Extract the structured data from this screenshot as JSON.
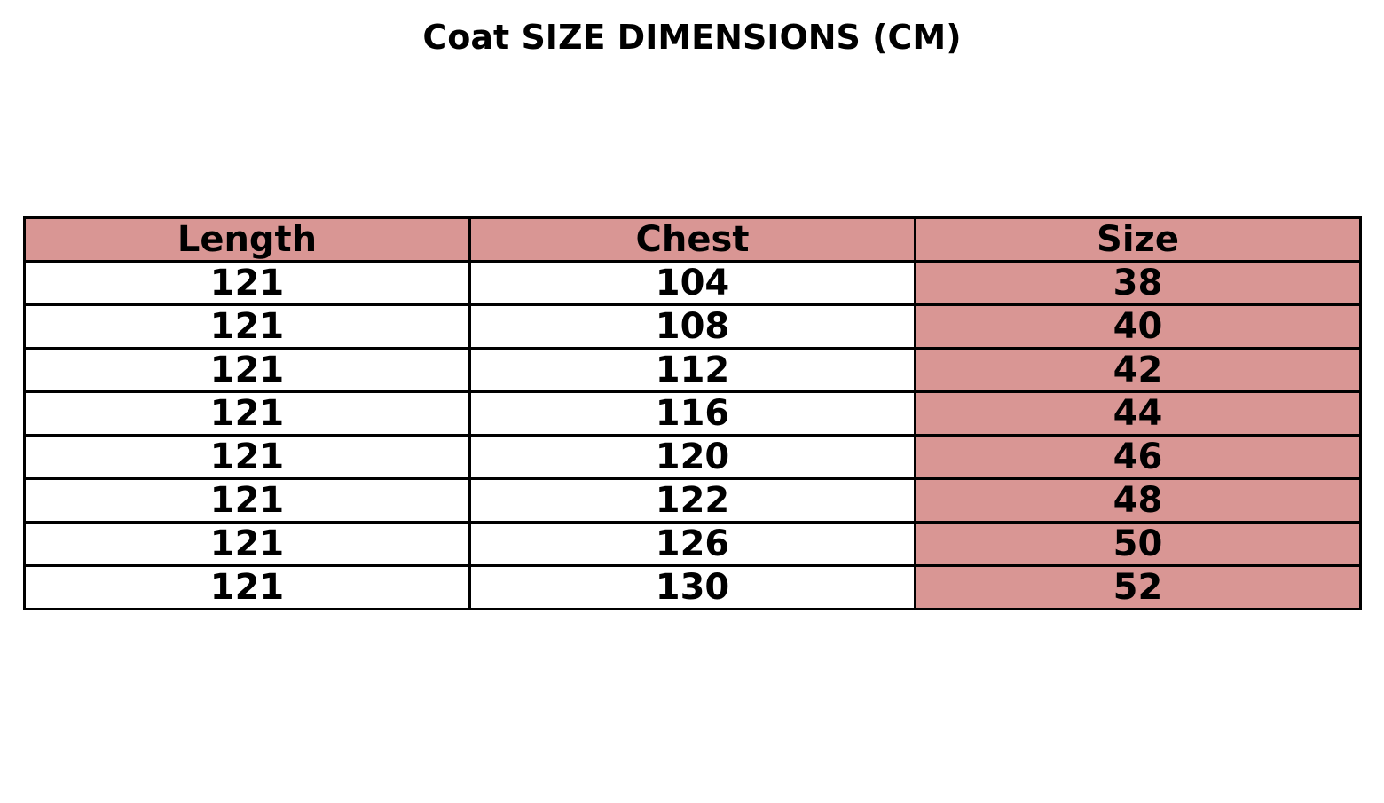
{
  "chart_data": {
    "type": "table",
    "title": "Coat SIZE DIMENSIONS (CM)",
    "columns": [
      "Length",
      "Chest",
      "Size"
    ],
    "rows": [
      [
        "121",
        "104",
        "38"
      ],
      [
        "121",
        "108",
        "40"
      ],
      [
        "121",
        "112",
        "42"
      ],
      [
        "121",
        "116",
        "44"
      ],
      [
        "121",
        "120",
        "46"
      ],
      [
        "121",
        "122",
        "48"
      ],
      [
        "121",
        "126",
        "50"
      ],
      [
        "121",
        "130",
        "52"
      ]
    ],
    "colors": {
      "header": "#d99694",
      "highlight_column": "#d99694",
      "cell": "#ffffff",
      "border": "#000000"
    }
  }
}
